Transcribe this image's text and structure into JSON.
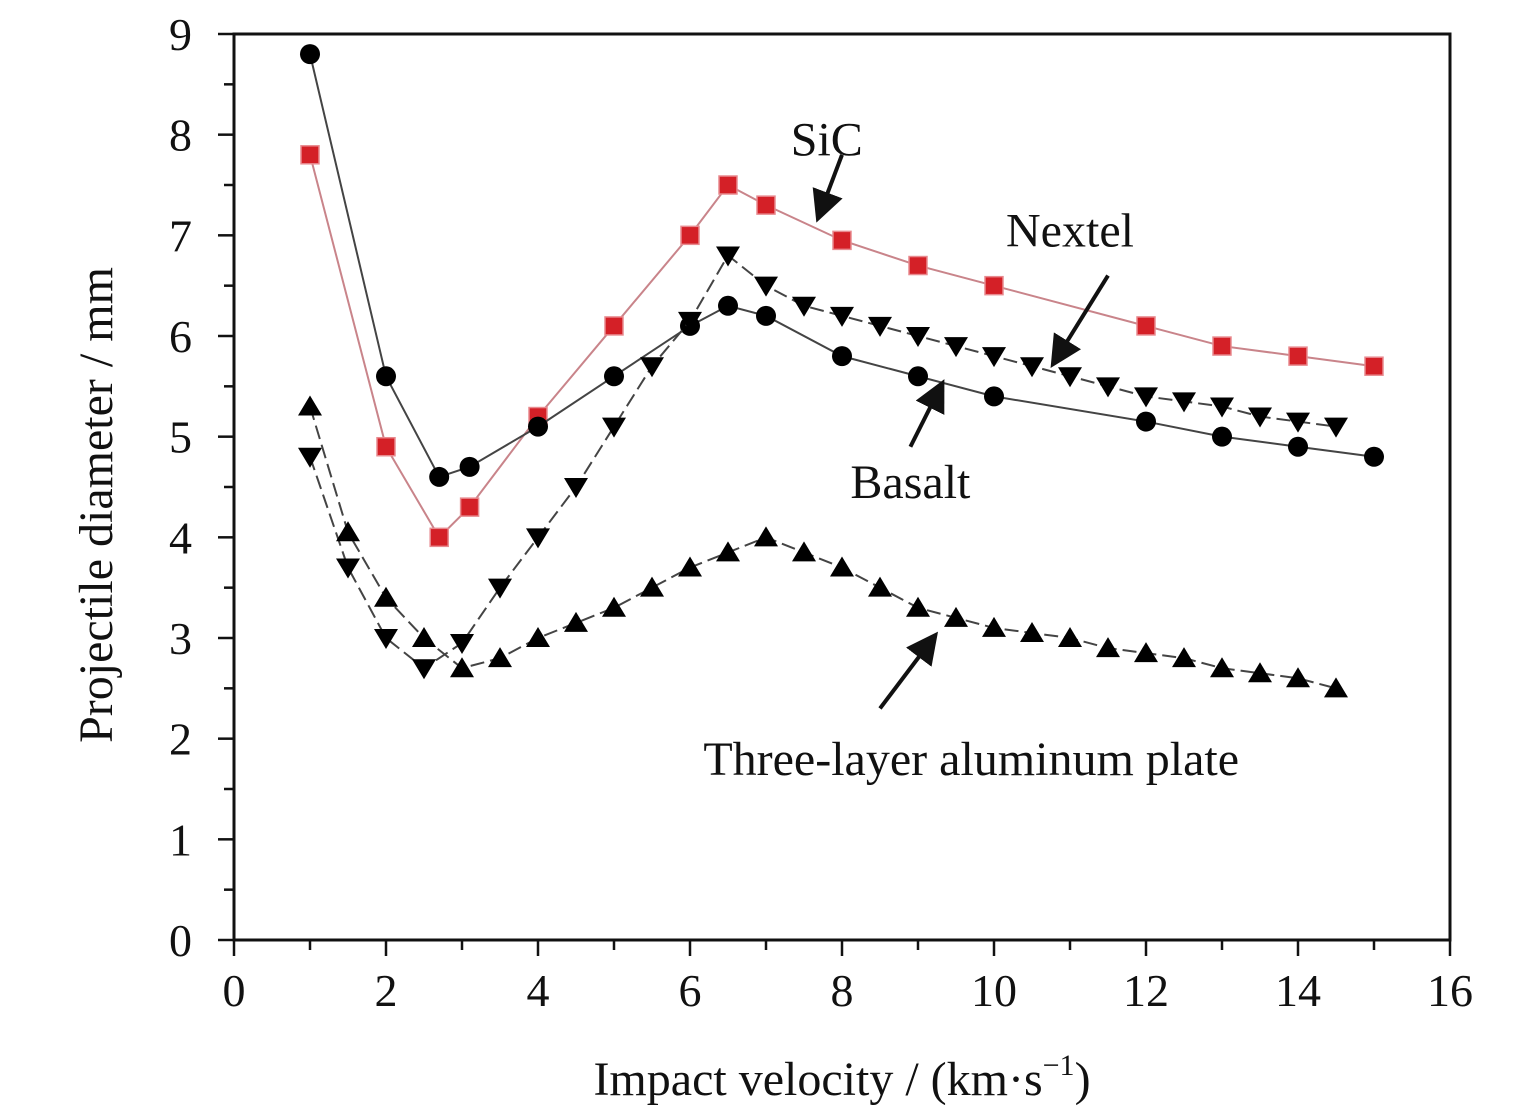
{
  "chart_data": {
    "type": "line",
    "title": "",
    "xlabel": "Impact velocity / (km·s",
    "xlabel_sup": "−1",
    "xlabel_close": ")",
    "ylabel": "Projectile diameter / mm",
    "xlim": [
      0,
      16
    ],
    "ylim": [
      0,
      9
    ],
    "x_ticks": [
      "0",
      "2",
      "4",
      "6",
      "8",
      "10",
      "12",
      "14",
      "16"
    ],
    "y_ticks": [
      "0",
      "1",
      "2",
      "3",
      "4",
      "5",
      "6",
      "7",
      "8",
      "9"
    ],
    "grid": false,
    "legend": "none (series labeled by arrow annotations)",
    "series": [
      {
        "name": "SiC",
        "marker": "square",
        "color": "#d42027",
        "line_color": "#c9848a",
        "line_style": "solid",
        "x": [
          1,
          2,
          2.7,
          3.1,
          4,
          5,
          6,
          6.5,
          7,
          8,
          9,
          10,
          12,
          13,
          14,
          15
        ],
        "y": [
          7.8,
          4.9,
          4.0,
          4.3,
          5.2,
          6.1,
          7.0,
          7.5,
          7.3,
          6.95,
          6.7,
          6.5,
          6.1,
          5.9,
          5.8,
          5.7
        ]
      },
      {
        "name": "Basalt",
        "marker": "circle",
        "color": "#000000",
        "line_color": "#444444",
        "line_style": "solid",
        "x": [
          1,
          2,
          2.7,
          3.1,
          4,
          5,
          6,
          6.5,
          7,
          8,
          9,
          10,
          12,
          13,
          14,
          15
        ],
        "y": [
          8.8,
          5.6,
          4.6,
          4.7,
          5.1,
          5.6,
          6.1,
          6.3,
          6.2,
          5.8,
          5.6,
          5.4,
          5.15,
          5.0,
          4.9,
          4.8
        ]
      },
      {
        "name": "Nextel",
        "marker": "triangle-down",
        "color": "#000000",
        "line_color": "#444444",
        "line_style": "dashed",
        "x": [
          1,
          1.5,
          2,
          2.5,
          3,
          3.5,
          4,
          4.5,
          5,
          5.5,
          6,
          6.5,
          7,
          7.5,
          8,
          8.5,
          9,
          9.5,
          10,
          10.5,
          11,
          11.5,
          12,
          12.5,
          13,
          13.5,
          14,
          14.5
        ],
        "y": [
          4.8,
          3.7,
          3.0,
          2.7,
          2.95,
          3.5,
          4.0,
          4.5,
          5.1,
          5.7,
          6.15,
          6.8,
          6.5,
          6.3,
          6.2,
          6.1,
          6.0,
          5.9,
          5.8,
          5.7,
          5.6,
          5.5,
          5.4,
          5.35,
          5.3,
          5.2,
          5.15,
          5.1
        ]
      },
      {
        "name": "Three-layer aluminum plate",
        "marker": "triangle-up",
        "color": "#000000",
        "line_color": "#444444",
        "line_style": "dashed",
        "x": [
          1,
          1.5,
          2,
          2.5,
          3,
          3.5,
          4,
          4.5,
          5,
          5.5,
          6,
          6.5,
          7,
          7.5,
          8,
          8.5,
          9,
          9.5,
          10,
          10.5,
          11,
          11.5,
          12,
          12.5,
          13,
          13.5,
          14,
          14.5
        ],
        "y": [
          5.3,
          4.05,
          3.4,
          3.0,
          2.7,
          2.8,
          3.0,
          3.15,
          3.3,
          3.5,
          3.7,
          3.85,
          4.0,
          3.85,
          3.7,
          3.5,
          3.3,
          3.2,
          3.1,
          3.05,
          3.0,
          2.9,
          2.85,
          2.8,
          2.7,
          2.65,
          2.6,
          2.5
        ]
      }
    ],
    "annotations": [
      {
        "text": "SiC",
        "series": "SiC",
        "label_at": [
          7.8,
          7.95
        ],
        "arrow_from": [
          8.0,
          7.8
        ],
        "arrow_to": [
          7.7,
          7.2
        ]
      },
      {
        "text": "Nextel",
        "series": "Nextel",
        "label_at": [
          11.0,
          7.05
        ],
        "arrow_from": [
          11.5,
          6.6
        ],
        "arrow_to": [
          10.8,
          5.75
        ]
      },
      {
        "text": "Basalt",
        "series": "Basalt",
        "label_at": [
          8.9,
          4.55
        ],
        "arrow_from": [
          8.9,
          4.9
        ],
        "arrow_to": [
          9.3,
          5.5
        ]
      },
      {
        "text": "Three-layer aluminum plate",
        "series": "Three-layer aluminum plate",
        "label_at": [
          9.7,
          1.8
        ],
        "arrow_from": [
          8.5,
          2.3
        ],
        "arrow_to": [
          9.2,
          3.0
        ]
      }
    ]
  }
}
